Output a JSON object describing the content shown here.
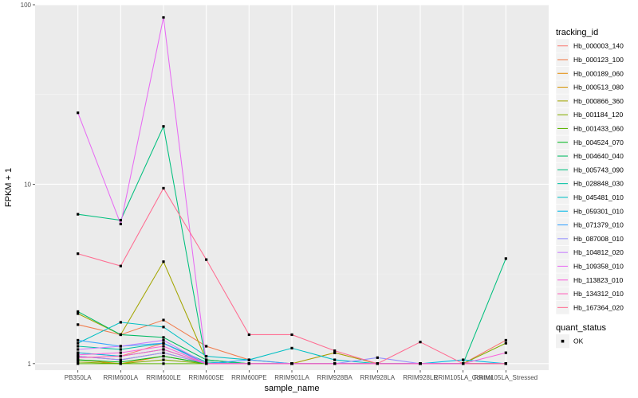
{
  "chart_data": {
    "type": "line",
    "title": "",
    "xlabel": "sample_name",
    "ylabel": "FPKM + 1",
    "y_scale": "log10",
    "ylim": [
      0.92,
      100
    ],
    "y_ticks": [
      1,
      10,
      100
    ],
    "y_tick_labels": [
      "1",
      "10",
      "100"
    ],
    "grid": true,
    "legend_position": "right",
    "categories": [
      "PB350LA",
      "RRIM600LA",
      "RRIM600LE",
      "RRIM600SE",
      "RRIM600PE",
      "RRIM901LA",
      "RRIM928BA",
      "RRIM928LA",
      "RRIM928LE",
      "RRIM105LA_Control",
      "RRIM105LA_Stressed"
    ],
    "legend_color_title": "tracking_id",
    "legend_shape_title": "quant_status",
    "legend_shape_label": "OK",
    "series": [
      {
        "name": "Hb_000003_140",
        "color": "#F8766D",
        "values": [
          1.15,
          1.1,
          1.3,
          1.0,
          1.0,
          1.0,
          1.0,
          1.0,
          1.0,
          1.0,
          1.35
        ]
      },
      {
        "name": "Hb_000123_100",
        "color": "#F07E4F",
        "values": [
          1.65,
          1.45,
          1.75,
          1.25,
          1.05,
          1.0,
          1.15,
          1.0,
          1.0,
          1.0,
          1.0
        ]
      },
      {
        "name": "Hb_000189_060",
        "color": "#E38900",
        "values": [
          1.05,
          1.0,
          1.1,
          1.0,
          1.0,
          1.0,
          1.0,
          1.0,
          1.0,
          1.0,
          1.0
        ]
      },
      {
        "name": "Hb_000513_080",
        "color": "#D49200",
        "values": [
          1.1,
          1.05,
          1.15,
          1.0,
          1.0,
          1.0,
          1.0,
          1.0,
          1.0,
          1.0,
          1.0
        ]
      },
      {
        "name": "Hb_000866_360",
        "color": "#A3A500",
        "values": [
          1.9,
          1.45,
          3.7,
          1.05,
          1.0,
          1.0,
          1.15,
          1.0,
          1.0,
          1.0,
          1.0
        ]
      },
      {
        "name": "Hb_001184_120",
        "color": "#85AD00",
        "values": [
          1.02,
          1.0,
          1.05,
          1.0,
          1.0,
          1.0,
          1.0,
          1.0,
          1.0,
          1.0,
          1.3
        ]
      },
      {
        "name": "Hb_001433_060",
        "color": "#5BB300",
        "values": [
          1.0,
          1.0,
          1.0,
          1.0,
          1.0,
          1.0,
          1.0,
          1.0,
          1.0,
          1.0,
          1.0
        ]
      },
      {
        "name": "Hb_004524_070",
        "color": "#00B81F",
        "values": [
          1.05,
          1.02,
          1.1,
          1.0,
          1.0,
          1.0,
          1.0,
          1.0,
          1.0,
          1.0,
          1.0
        ]
      },
      {
        "name": "Hb_004640_040",
        "color": "#00BA63",
        "values": [
          1.95,
          1.45,
          1.4,
          1.05,
          1.0,
          1.0,
          1.0,
          1.0,
          1.0,
          1.0,
          1.0
        ]
      },
      {
        "name": "Hb_005743_090",
        "color": "#00BF7D",
        "values": [
          6.8,
          6.3,
          21.0,
          1.0,
          1.0,
          1.0,
          1.0,
          1.0,
          1.0,
          1.0,
          3.85
        ]
      },
      {
        "name": "Hb_028848_030",
        "color": "#00C1A3",
        "values": [
          1.25,
          1.2,
          1.3,
          1.02,
          1.0,
          1.0,
          1.0,
          1.0,
          1.0,
          1.0,
          1.0
        ]
      },
      {
        "name": "Hb_045481_010",
        "color": "#00BFC4",
        "values": [
          1.3,
          1.7,
          1.6,
          1.1,
          1.05,
          1.22,
          1.05,
          1.0,
          1.0,
          1.0,
          1.0
        ]
      },
      {
        "name": "Hb_059301_010",
        "color": "#00B8E7",
        "values": [
          1.15,
          1.1,
          1.2,
          1.0,
          1.0,
          1.0,
          1.0,
          1.0,
          1.0,
          1.05,
          1.0
        ]
      },
      {
        "name": "Hb_071379_010",
        "color": "#35A2FF",
        "values": [
          1.35,
          1.25,
          1.3,
          1.0,
          1.05,
          1.0,
          1.0,
          1.0,
          1.0,
          1.0,
          1.0
        ]
      },
      {
        "name": "Hb_087008_010",
        "color": "#9590FF",
        "values": [
          1.1,
          1.05,
          1.15,
          1.0,
          1.0,
          1.0,
          1.0,
          1.08,
          1.0,
          1.0,
          1.0
        ]
      },
      {
        "name": "Hb_104812_020",
        "color": "#C77CFF",
        "values": [
          1.2,
          1.25,
          1.35,
          1.0,
          1.0,
          1.0,
          1.0,
          1.0,
          1.0,
          1.0,
          1.0
        ]
      },
      {
        "name": "Hb_109358_010",
        "color": "#E76BF3",
        "values": [
          25.0,
          6.0,
          85.0,
          1.0,
          1.0,
          1.0,
          1.0,
          1.0,
          1.0,
          1.0,
          1.0
        ]
      },
      {
        "name": "Hb_113823_010",
        "color": "#FA62DB",
        "values": [
          1.12,
          1.15,
          1.25,
          1.0,
          1.0,
          1.0,
          1.0,
          1.0,
          1.0,
          1.0,
          1.15
        ]
      },
      {
        "name": "Hb_134312_010",
        "color": "#FF62BC",
        "values": [
          1.08,
          1.1,
          1.2,
          1.0,
          1.0,
          1.0,
          1.0,
          1.0,
          1.0,
          1.0,
          1.0
        ]
      },
      {
        "name": "Hb_167364_020",
        "color": "#FF6C91",
        "values": [
          4.1,
          3.5,
          9.5,
          3.8,
          1.45,
          1.45,
          1.18,
          1.0,
          1.32,
          1.0,
          1.0
        ]
      }
    ]
  }
}
